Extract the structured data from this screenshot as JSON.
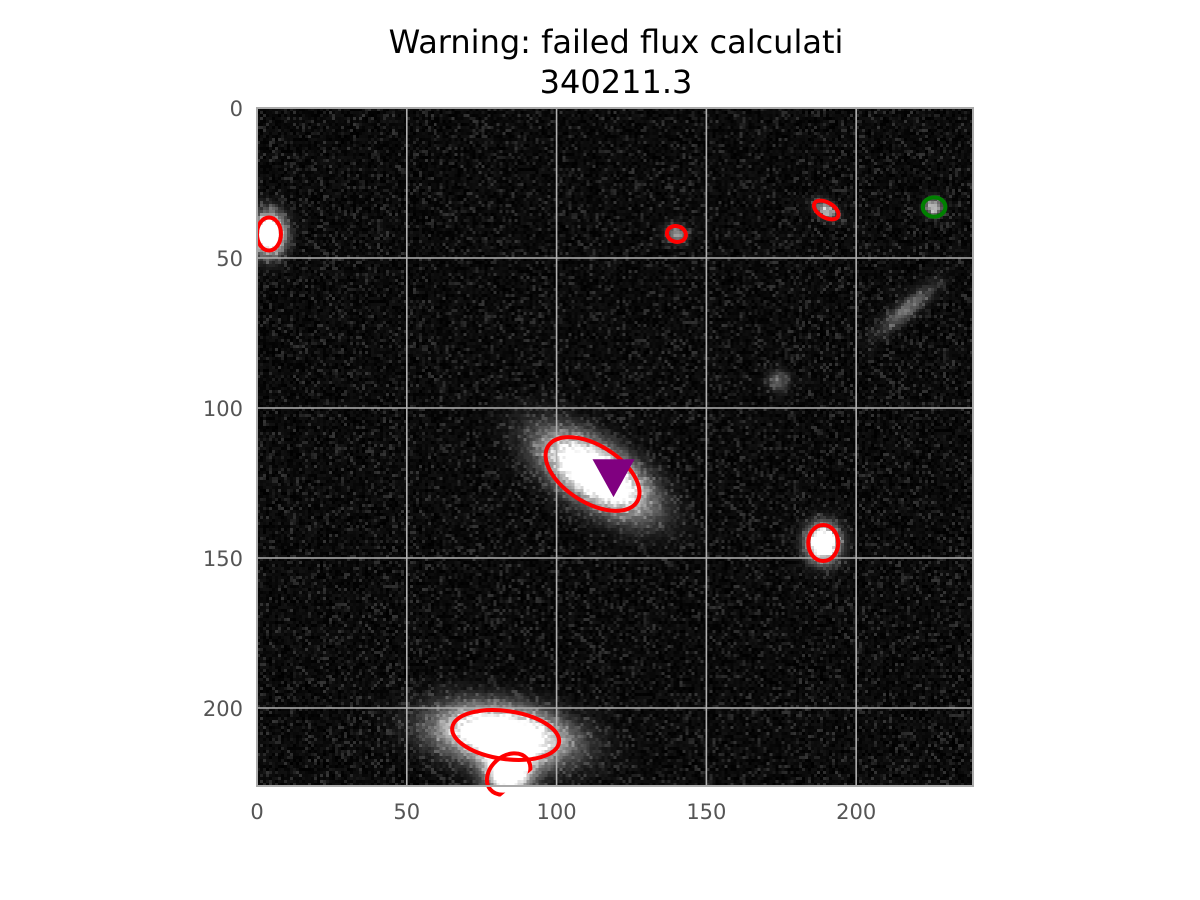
{
  "chart_data": {
    "type": "scatter",
    "title_line1": "Warning: failed flux calculati",
    "title_line2": "340211.3",
    "xlabel": "",
    "ylabel": "",
    "xlim": [
      0,
      239
    ],
    "ylim": [
      226,
      0
    ],
    "x_ticks": [
      0,
      50,
      100,
      150,
      200
    ],
    "y_ticks": [
      0,
      50,
      100,
      150,
      200
    ],
    "grid": true,
    "background": "grayscale noise image",
    "sources": [
      {
        "x": 4,
        "y": 42,
        "a": 3.5,
        "b": 4.5,
        "angle": 0,
        "peak": 1.0
      },
      {
        "x": 140,
        "y": 42,
        "a": 2.5,
        "b": 2,
        "angle": 20,
        "peak": 0.35
      },
      {
        "x": 190,
        "y": 34,
        "a": 3,
        "b": 1.8,
        "angle": 30,
        "peak": 0.4
      },
      {
        "x": 226,
        "y": 33,
        "a": 2,
        "b": 2,
        "angle": 0,
        "peak": 0.45
      },
      {
        "x": 113,
        "y": 122,
        "a": 13,
        "b": 6,
        "angle": 33,
        "peak": 1.0
      },
      {
        "x": 189,
        "y": 145,
        "a": 3.5,
        "b": 4,
        "angle": 0,
        "peak": 1.0
      },
      {
        "x": 82,
        "y": 209,
        "a": 14,
        "b": 6,
        "angle": 8,
        "peak": 1.0
      },
      {
        "x": 84,
        "y": 221,
        "a": 5,
        "b": 5,
        "angle": 0,
        "peak": 0.9
      },
      {
        "x": 217,
        "y": 67,
        "a": 8,
        "b": 2,
        "angle": -40,
        "peak": 0.25
      },
      {
        "x": 174,
        "y": 91,
        "a": 2.5,
        "b": 2.5,
        "angle": 0,
        "peak": 0.2
      }
    ],
    "ellipses": [
      {
        "x": 4,
        "y": 42,
        "rx": 4,
        "ry": 5.5,
        "angle": 0,
        "color": "#ff0000"
      },
      {
        "x": 140,
        "y": 42,
        "rx": 3.2,
        "ry": 2.6,
        "angle": 15,
        "color": "#ff0000"
      },
      {
        "x": 190,
        "y": 34,
        "rx": 4.5,
        "ry": 2.5,
        "angle": 30,
        "color": "#ff0000"
      },
      {
        "x": 112,
        "y": 122,
        "rx": 17.5,
        "ry": 9.5,
        "angle": 32,
        "color": "#ff0000"
      },
      {
        "x": 189,
        "y": 145,
        "rx": 5,
        "ry": 6,
        "angle": 0,
        "color": "#ff0000"
      },
      {
        "x": 83,
        "y": 209,
        "rx": 18,
        "ry": 8,
        "angle": 8,
        "color": "#ff0000"
      },
      {
        "x": 84,
        "y": 222,
        "rx": 8,
        "ry": 6,
        "angle": -40,
        "color": "#ff0000"
      },
      {
        "x": 226,
        "y": 33,
        "rx": 3.8,
        "ry": 3.2,
        "angle": 0,
        "color": "#008000"
      }
    ],
    "marker": {
      "x": 119,
      "y": 122,
      "shape": "triangle-down",
      "color": "#800080"
    }
  }
}
